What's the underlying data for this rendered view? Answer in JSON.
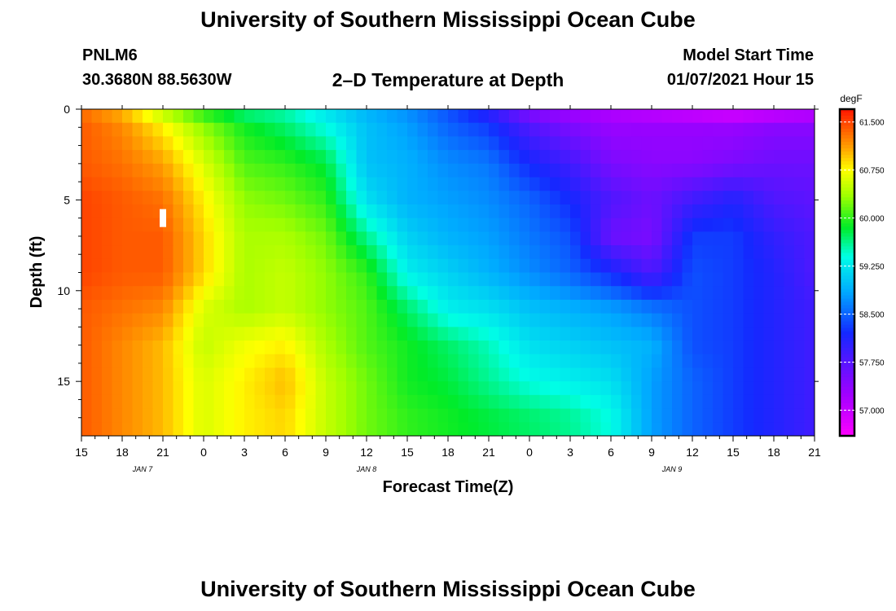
{
  "page": {
    "title": "University of Southern Mississippi Ocean Cube",
    "footer_title": "University of Southern Mississippi Ocean Cube",
    "station_id": "PNLM6",
    "station_coords": "30.3680N 88.5630W",
    "subtitle": "2–D Temperature at Depth",
    "model_start_label": "Model Start Time",
    "model_start_value": "01/07/2021 Hour 15"
  },
  "chart_data": {
    "type": "heatmap",
    "title": "2–D Temperature at Depth",
    "xlabel": "Forecast Time(Z)",
    "ylabel": "Depth (ft)",
    "x_ticks": [
      "15",
      "18",
      "21",
      "0",
      "3",
      "6",
      "9",
      "12",
      "15",
      "18",
      "21",
      "0",
      "3",
      "6",
      "9",
      "12",
      "15",
      "18",
      "21"
    ],
    "date_labels": [
      {
        "label": "JAN 7",
        "tick_index": 1.5
      },
      {
        "label": "JAN 8",
        "tick_index": 7
      },
      {
        "label": "JAN 9",
        "tick_index": 14.5
      }
    ],
    "y_ticks": [
      0,
      5,
      10,
      15
    ],
    "ylim": [
      0,
      18
    ],
    "x_range_hours": [
      0,
      54
    ],
    "colorbar": {
      "unit": "degF",
      "min": 56.6,
      "max": 61.7,
      "ticks": [
        "61.500",
        "60.750",
        "60.000",
        "59.250",
        "58.500",
        "57.750",
        "57.000"
      ],
      "tick_values": [
        61.5,
        60.75,
        60.0,
        59.25,
        58.5,
        57.75,
        57.0
      ]
    },
    "grid": false,
    "depths_ft": [
      0,
      1,
      3,
      5,
      7,
      9,
      11,
      13,
      15,
      17,
      18
    ],
    "hours": [
      0,
      3,
      6,
      9,
      12,
      15,
      18,
      21,
      24,
      27,
      30,
      33,
      36,
      39,
      42,
      45,
      48,
      51,
      54
    ],
    "temperature_degF": [
      [
        61.3,
        61.0,
        60.4,
        59.9,
        59.6,
        59.5,
        59.2,
        58.9,
        58.7,
        58.4,
        58.0,
        57.4,
        57.2,
        57.1,
        57.0,
        56.9,
        56.8,
        56.9,
        57.0
      ],
      [
        61.4,
        61.2,
        60.8,
        60.3,
        59.9,
        59.7,
        59.4,
        59.0,
        58.8,
        58.5,
        58.3,
        57.8,
        57.5,
        57.3,
        57.3,
        57.3,
        57.3,
        57.4,
        57.4
      ],
      [
        61.4,
        61.3,
        61.1,
        60.6,
        60.1,
        60.0,
        59.8,
        59.0,
        58.9,
        58.7,
        58.6,
        58.2,
        57.9,
        57.5,
        57.4,
        57.4,
        57.5,
        57.6,
        57.6
      ],
      [
        61.5,
        61.4,
        61.3,
        60.8,
        60.3,
        60.2,
        60.0,
        59.2,
        58.9,
        58.8,
        58.7,
        58.5,
        58.2,
        57.8,
        57.6,
        57.9,
        58.1,
        57.8,
        57.7
      ],
      [
        61.5,
        61.4,
        61.4,
        60.9,
        60.4,
        60.4,
        60.2,
        59.6,
        59.1,
        58.9,
        58.8,
        58.6,
        58.4,
        57.6,
        57.5,
        58.3,
        58.3,
        58.0,
        57.8
      ],
      [
        61.5,
        61.4,
        61.4,
        60.9,
        60.4,
        60.5,
        60.3,
        60.0,
        59.3,
        59.1,
        58.9,
        58.7,
        58.5,
        58.2,
        57.8,
        58.4,
        58.3,
        58.1,
        57.8
      ],
      [
        61.4,
        61.3,
        61.2,
        60.6,
        60.4,
        60.5,
        60.3,
        60.1,
        59.7,
        59.3,
        59.2,
        59.0,
        58.9,
        58.8,
        58.6,
        58.4,
        58.3,
        58.1,
        57.9
      ],
      [
        61.4,
        61.2,
        61.0,
        60.5,
        60.7,
        60.8,
        60.4,
        60.1,
        59.9,
        59.7,
        59.5,
        59.2,
        59.1,
        59.0,
        58.9,
        58.4,
        58.3,
        58.1,
        57.9
      ],
      [
        61.4,
        61.2,
        61.0,
        60.6,
        60.8,
        61.0,
        60.5,
        60.2,
        59.9,
        59.8,
        59.6,
        59.4,
        59.3,
        59.2,
        58.8,
        58.5,
        58.3,
        58.1,
        57.9
      ],
      [
        61.4,
        61.2,
        61.0,
        60.6,
        60.8,
        60.9,
        60.5,
        60.2,
        60.0,
        59.9,
        59.8,
        59.7,
        59.6,
        59.4,
        58.8,
        58.5,
        58.3,
        58.1,
        57.9
      ],
      [
        61.4,
        61.2,
        61.0,
        60.6,
        60.8,
        60.9,
        60.5,
        60.2,
        60.0,
        59.9,
        59.8,
        59.7,
        59.6,
        59.4,
        58.8,
        58.5,
        58.3,
        58.1,
        57.9
      ]
    ],
    "annotations": [
      {
        "type": "marker",
        "hour": 6,
        "depth_ft": 6,
        "color": "#ffffff"
      }
    ]
  }
}
